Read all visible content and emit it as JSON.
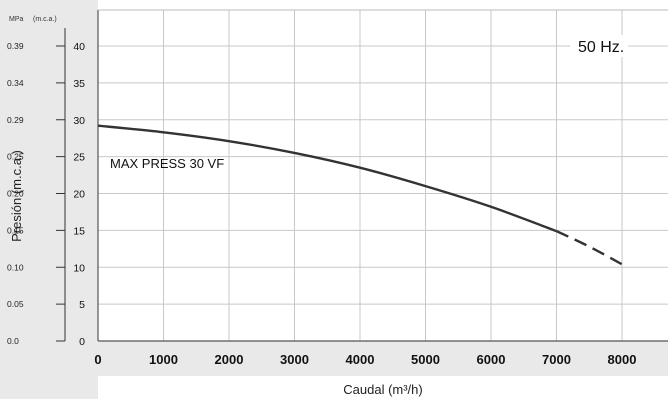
{
  "chart_data": {
    "type": "line",
    "title": "",
    "xlabel": "Caudal (m³/h)",
    "ylabel": "Presión (m.c.a.)",
    "xlim": [
      0,
      8000
    ],
    "ylim": [
      0,
      45
    ],
    "x_ticks": [
      0,
      1000,
      2000,
      3000,
      4000,
      5000,
      6000,
      7000,
      8000
    ],
    "x_tick_labels": [
      "0",
      "1000",
      "2000",
      "3000",
      "4000",
      "5000",
      "6000",
      "7000",
      "8000"
    ],
    "y_ticks": [
      0,
      5,
      10,
      15,
      20,
      25,
      30,
      35,
      40
    ],
    "y_tick_labels_mca": [
      "0",
      "5",
      "10",
      "15",
      "20",
      "25",
      "30",
      "35",
      "40"
    ],
    "y_tick_labels_mpa": [
      "0.0",
      "0.05",
      "0.10",
      "0.15",
      "0.20",
      "0.25",
      "0.29",
      "0.34",
      "0.39"
    ],
    "y_unit_labels": [
      "MPa",
      "(m.c.a.)"
    ],
    "grid": true,
    "series": [
      {
        "name": "MAX PRESS 30 VF",
        "x": [
          0,
          1000,
          2000,
          3000,
          4000,
          5000,
          6000,
          7000
        ],
        "y": [
          29.2,
          28.3,
          27.1,
          25.5,
          23.5,
          21.0,
          18.2,
          14.9
        ],
        "style": "solid"
      },
      {
        "name": "MAX PRESS 30 VF",
        "x": [
          7000,
          7500,
          8000
        ],
        "y": [
          14.9,
          12.8,
          10.4
        ],
        "style": "dashed"
      }
    ],
    "annotations": [
      {
        "text": "MAX PRESS 30 VF"
      },
      {
        "text": "50 Hz."
      }
    ],
    "colors": {
      "line": "#333333",
      "grid": "#c8c8c8",
      "band": "#e9e9e9"
    }
  }
}
